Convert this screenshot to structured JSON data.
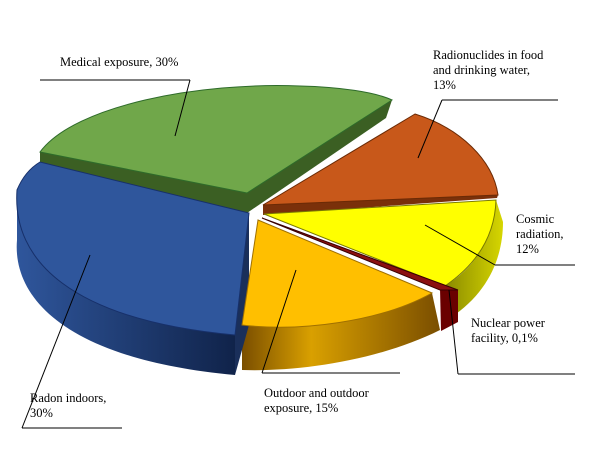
{
  "chart_data": {
    "type": "pie",
    "title": "",
    "style": "3d-exploded",
    "slices": [
      {
        "label": "Medical exposure, 30%",
        "lines": [
          "Medical exposure, 30%"
        ],
        "value": 30,
        "color": "#70a74a"
      },
      {
        "label": "Radionuclides in food and drinking water, 13%",
        "lines": [
          "Radionuclides  in food",
          "and drinking  water,",
          "13%"
        ],
        "value": 13,
        "color": "#c8581a"
      },
      {
        "label": "Cosmic radiation, 12%",
        "lines": [
          "Cosmic",
          "radiation,",
          "12%"
        ],
        "value": 12,
        "color": "#ffff00"
      },
      {
        "label": "Nuclear power facility, 0,1%",
        "lines": [
          "Nuclear power",
          "facility,  0,1%"
        ],
        "value": 0.1,
        "color": "#8b1010"
      },
      {
        "label": "Outdoor and outdoor exposure, 15%",
        "lines": [
          "Outdoor and outdoor",
          "exposure, 15%"
        ],
        "value": 15,
        "color": "#ffbf00"
      },
      {
        "label": "Radon indoors, 30%",
        "lines": [
          "Radon indoors,",
          "30%"
        ],
        "value": 30,
        "color": "#2f569c"
      }
    ]
  }
}
